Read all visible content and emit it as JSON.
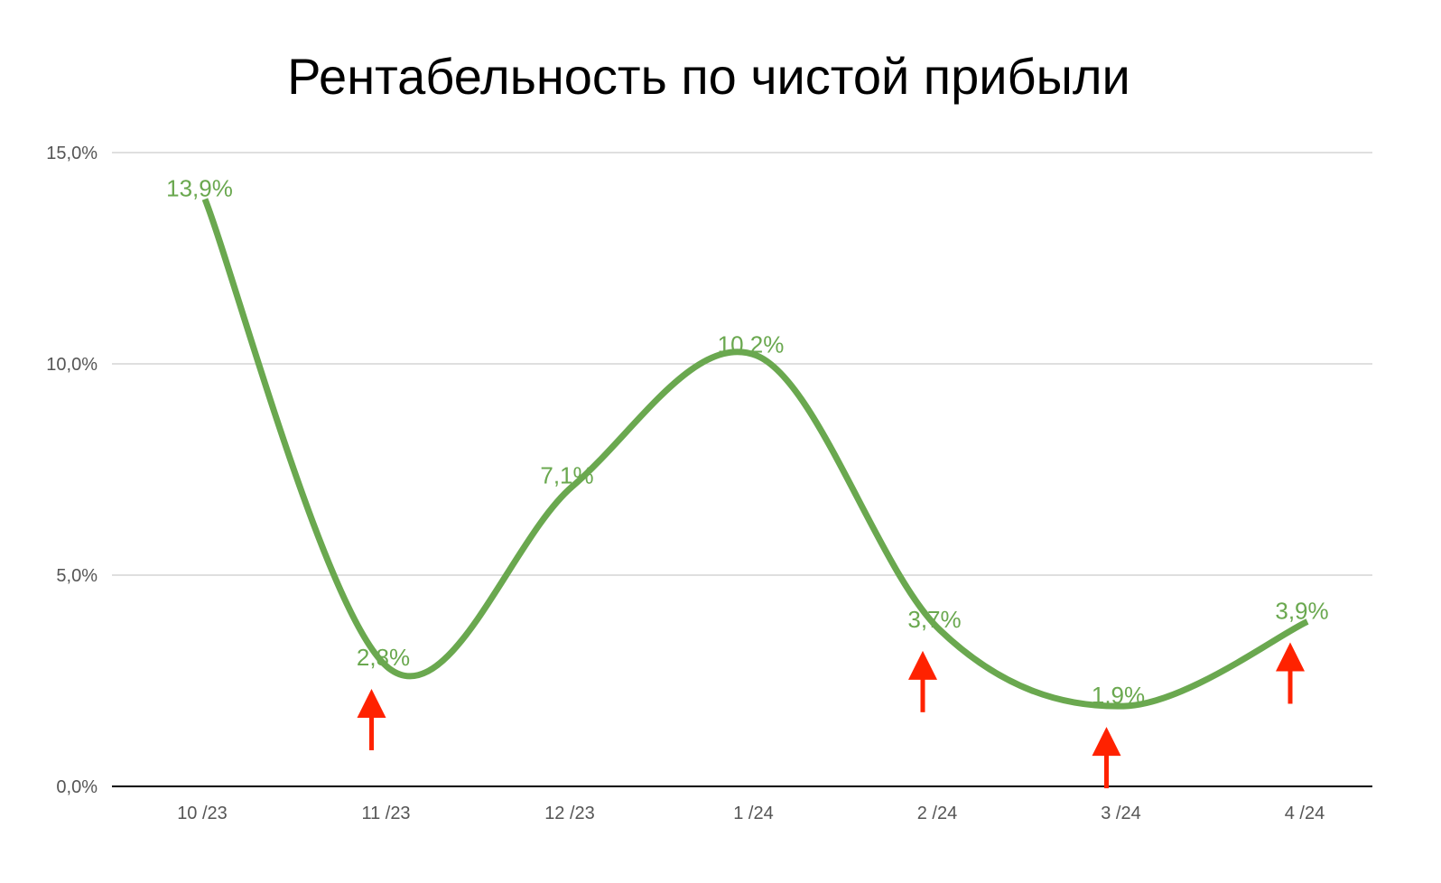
{
  "chart_data": {
    "type": "line",
    "title": "Рентабельность по чистой прибыли",
    "xlabel": "",
    "ylabel": "",
    "categories": [
      "10 /23",
      "11 /23",
      "12 /23",
      "1 /24",
      "2 /24",
      "3 /24",
      "4 /24"
    ],
    "series": [
      {
        "values": [
          13.9,
          2.8,
          7.1,
          10.2,
          3.7,
          1.9,
          3.9
        ],
        "data_labels": [
          "13,9%",
          "2,8%",
          "7,1%",
          "10,2%",
          "3,7%",
          "1,9%",
          "3,9%"
        ]
      }
    ],
    "ylim": [
      0,
      15
    ],
    "yticks": [
      0,
      5,
      10,
      15
    ],
    "ytick_labels": [
      "0,0%",
      "5,0%",
      "10,0%",
      "15,0%"
    ],
    "grid": true,
    "smooth": true,
    "legend": "none",
    "annotations": {
      "type": "up-arrows",
      "color": "#ff2200",
      "at_categories": [
        "11 /23",
        "2 /24",
        "3 /24",
        "4 /24"
      ]
    }
  },
  "colors": {
    "line": "#6aa84f",
    "labels": "#6aa84f",
    "grid": "#cccccc",
    "baseline": "#000000",
    "arrows": "#ff2200"
  }
}
